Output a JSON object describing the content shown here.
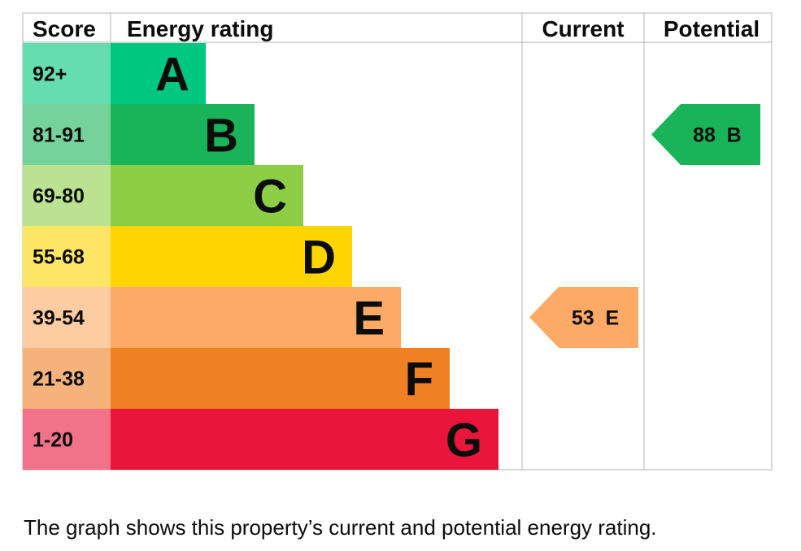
{
  "chart_data": {
    "type": "bar",
    "headers": {
      "score": "Score",
      "rating": "Energy rating",
      "current": "Current",
      "potential": "Potential"
    },
    "bands": [
      {
        "letter": "A",
        "range": "92+",
        "color": "#00c781",
        "score_bg": "#66dcb1"
      },
      {
        "letter": "B",
        "range": "81-91",
        "color": "#19b459",
        "score_bg": "#75d29b"
      },
      {
        "letter": "C",
        "range": "69-80",
        "color": "#8dce46",
        "score_bg": "#bbe290"
      },
      {
        "letter": "D",
        "range": "55-68",
        "color": "#ffd500",
        "score_bg": "#ffe666"
      },
      {
        "letter": "E",
        "range": "39-54",
        "color": "#fcaa65",
        "score_bg": "#fdcca3"
      },
      {
        "letter": "F",
        "range": "21-38",
        "color": "#ef8023",
        "score_bg": "#f5b37b"
      },
      {
        "letter": "G",
        "range": "1-20",
        "color": "#e9153b",
        "score_bg": "#f27389"
      }
    ],
    "current": {
      "value": 53,
      "band": "E",
      "label": "53  E"
    },
    "potential": {
      "value": 88,
      "band": "B",
      "label": "88  B"
    }
  },
  "caption": "The graph shows this property’s current and potential energy rating."
}
